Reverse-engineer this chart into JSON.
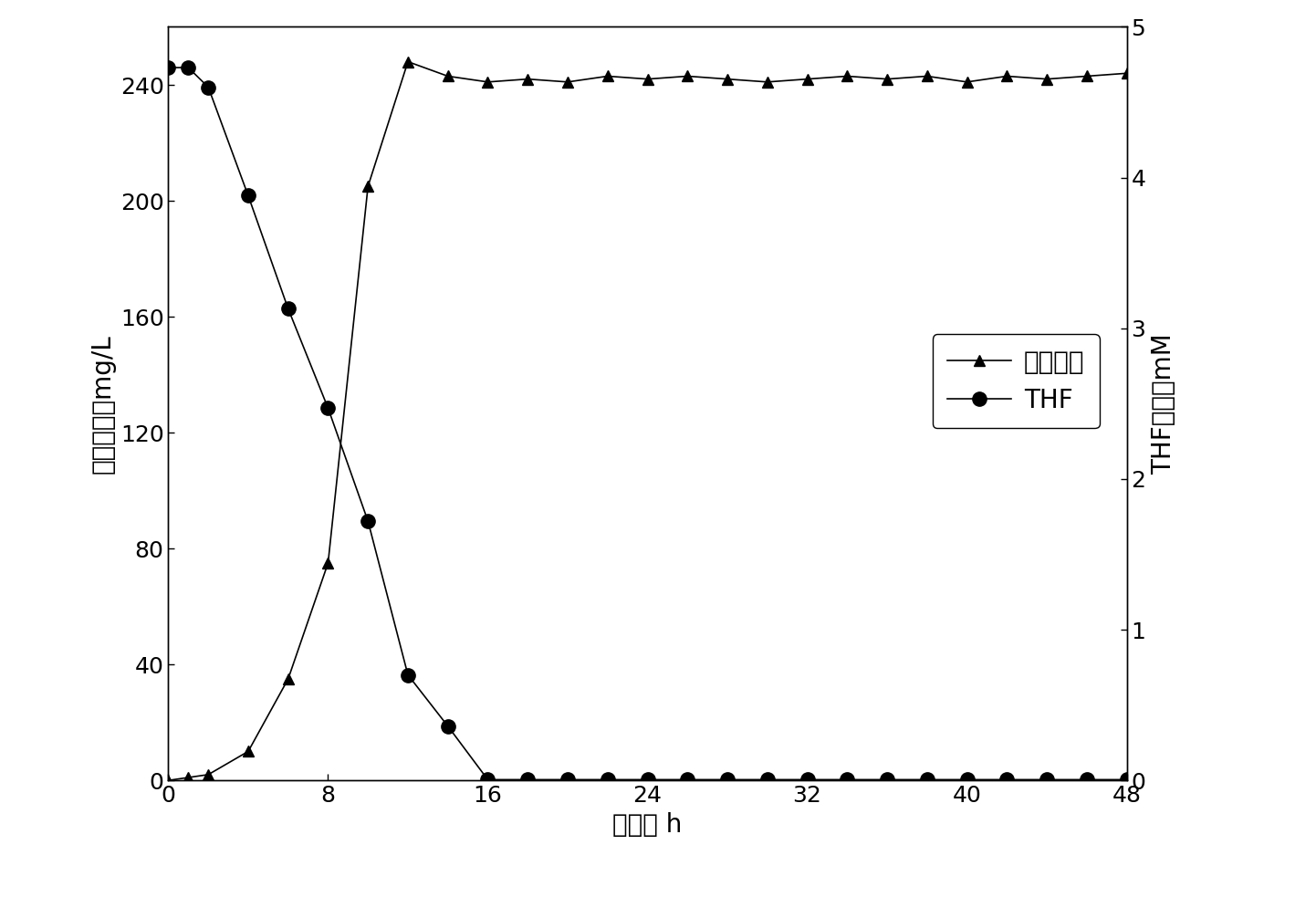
{
  "bacteria_x": [
    0,
    1,
    2,
    4,
    6,
    8,
    10,
    12,
    14,
    16,
    18,
    20,
    22,
    24,
    26,
    28,
    30,
    32,
    34,
    36,
    38,
    40,
    42,
    44,
    46,
    48
  ],
  "bacteria_y": [
    0,
    1,
    2,
    10,
    35,
    75,
    205,
    248,
    243,
    241,
    242,
    241,
    243,
    242,
    243,
    242,
    241,
    242,
    243,
    242,
    243,
    241,
    243,
    242,
    243,
    244
  ],
  "thf_x": [
    0,
    1,
    2,
    4,
    6,
    8,
    10,
    12,
    14,
    16,
    18,
    20,
    22,
    24,
    26,
    28,
    30,
    32,
    34,
    36,
    38,
    40,
    42,
    44,
    46,
    48
  ],
  "thf_y": [
    4.73,
    4.73,
    4.6,
    3.88,
    3.13,
    2.47,
    1.72,
    0.7,
    0.36,
    0.005,
    0.005,
    0.005,
    0.005,
    0.005,
    0.005,
    0.005,
    0.005,
    0.005,
    0.005,
    0.005,
    0.005,
    0.005,
    0.005,
    0.005,
    0.005,
    0.005
  ],
  "bacteria_color": "#000000",
  "thf_color": "#000000",
  "xlabel": "时间， h",
  "ylabel_left": "菌体干重，mg/L",
  "ylabel_right": "THF浓度，mM",
  "legend_bacteria": "菌体浓度",
  "legend_thf": "THF",
  "xlim": [
    0,
    48
  ],
  "ylim_left": [
    0,
    260
  ],
  "ylim_right": [
    0,
    5
  ],
  "xticks": [
    0,
    8,
    16,
    24,
    32,
    40,
    48
  ],
  "yticks_left": [
    0,
    40,
    80,
    120,
    160,
    200,
    240
  ],
  "yticks_right": [
    0,
    1,
    2,
    3,
    4,
    5
  ],
  "bg_color": "#ffffff",
  "linewidth": 1.2,
  "markersize_tri": 9,
  "markersize_dot": 11,
  "fontsize_label": 20,
  "fontsize_tick": 18,
  "fontsize_legend": 20
}
